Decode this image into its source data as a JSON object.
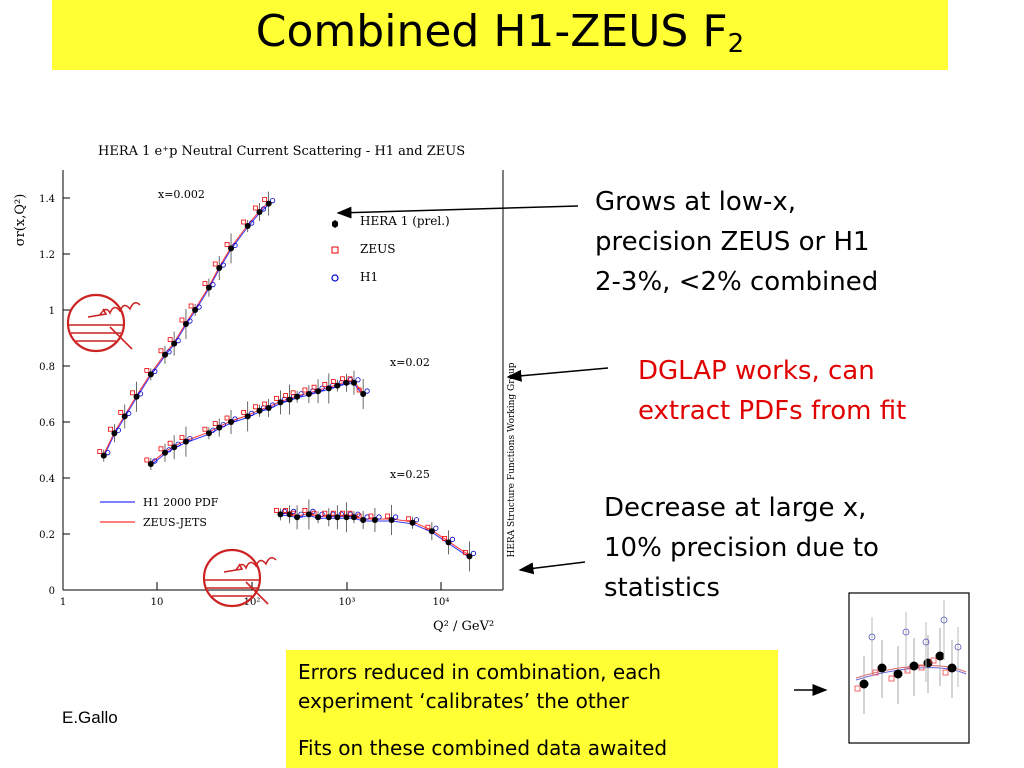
{
  "slide": {
    "title": "Combined H1-ZEUS F",
    "title_sub": "2",
    "author": "E.Gallo",
    "colors": {
      "title_bg": "#ffff33",
      "red_text": "#e00000",
      "h1_pdf": "#3333ff",
      "zeus_jets": "#ff3333"
    }
  },
  "annotations": [
    {
      "lines": [
        "Grows at low-x,",
        "precision ZEUS or H1",
        "2-3%, <2% combined"
      ],
      "color": "#000000"
    },
    {
      "lines": [
        "DGLAP works, can",
        "extract PDFs from fit"
      ],
      "color": "#e00000"
    },
    {
      "lines": [
        "Decrease at large x,",
        "10% precision due to",
        "statistics"
      ],
      "color": "#000000"
    }
  ],
  "yellow_box": {
    "line1": "Errors reduced in combination, each",
    "line2": "experiment ‘calibrates’ the other",
    "line3": "Fits on these combined data awaited"
  },
  "chart_data": {
    "type": "scatter",
    "title": "HERA 1 e⁺p Neutral Current Scattering - H1 and ZEUS",
    "xlabel": "Q² / GeV²",
    "ylabel": "σr(x,Q²)",
    "side_label": "HERA Structure Functions Working Group",
    "x_scale": "log",
    "xlim": [
      1,
      30000
    ],
    "ylim": [
      0,
      1.5
    ],
    "x_ticks": [
      "1",
      "10",
      "10²",
      "10³",
      "10⁴"
    ],
    "y_ticks": [
      "0",
      "0.2",
      "0.4",
      "0.6",
      "0.8",
      "1",
      "1.2",
      "1.4"
    ],
    "legend": [
      {
        "name": "HERA 1 (prel.)",
        "marker": "filled-circle"
      },
      {
        "name": "ZEUS",
        "marker": "open-square"
      },
      {
        "name": "H1",
        "marker": "open-circle"
      }
    ],
    "fit_legend": [
      {
        "name": "H1 2000 PDF",
        "color": "#3333ff"
      },
      {
        "name": "ZEUS-JETS",
        "color": "#ff3333"
      }
    ],
    "series": [
      {
        "name": "x=0.002",
        "x": [
          2.7,
          3.5,
          4.5,
          6,
          8.5,
          12,
          15,
          20,
          25,
          35,
          45,
          60,
          90,
          120,
          150
        ],
        "y": [
          0.48,
          0.56,
          0.62,
          0.69,
          0.77,
          0.84,
          0.88,
          0.95,
          1.0,
          1.08,
          1.15,
          1.22,
          1.3,
          1.35,
          1.38
        ]
      },
      {
        "name": "x=0.02",
        "x": [
          8.5,
          12,
          15,
          20,
          35,
          45,
          60,
          90,
          120,
          150,
          200,
          250,
          300,
          400,
          500,
          650,
          800,
          1000,
          1200,
          1500
        ],
        "y": [
          0.45,
          0.49,
          0.51,
          0.53,
          0.56,
          0.58,
          0.6,
          0.62,
          0.64,
          0.65,
          0.67,
          0.68,
          0.69,
          0.7,
          0.71,
          0.72,
          0.73,
          0.74,
          0.74,
          0.7
        ]
      },
      {
        "name": "x=0.25",
        "x": [
          200,
          250,
          300,
          400,
          500,
          650,
          800,
          1000,
          1200,
          1500,
          2000,
          3000,
          5000,
          8000,
          12000,
          20000
        ],
        "y": [
          0.27,
          0.27,
          0.26,
          0.27,
          0.26,
          0.26,
          0.26,
          0.26,
          0.26,
          0.25,
          0.25,
          0.25,
          0.24,
          0.21,
          0.17,
          0.12
        ]
      }
    ]
  }
}
